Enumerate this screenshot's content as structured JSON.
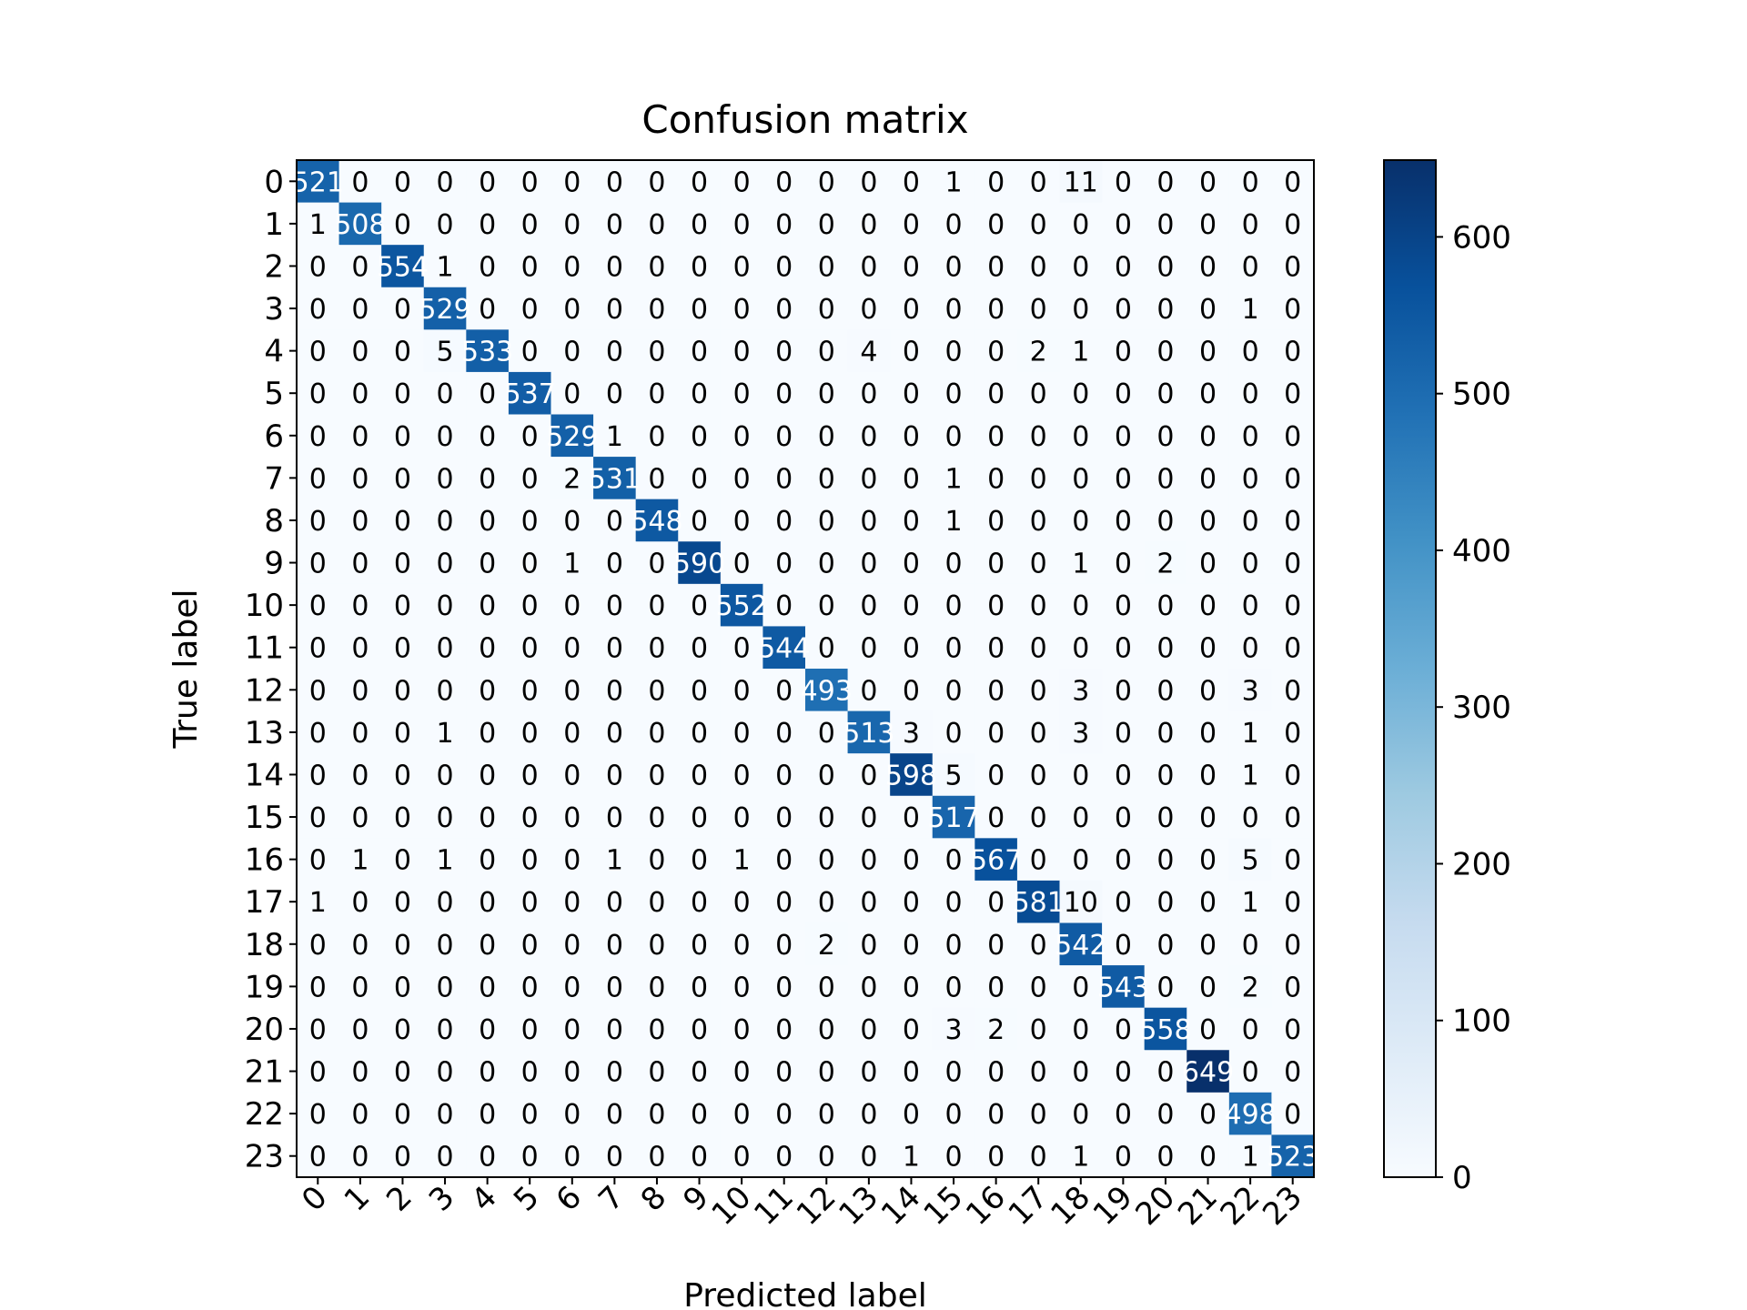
{
  "chart_data": {
    "type": "heatmap",
    "title": "Confusion matrix",
    "xlabel": "Predicted label",
    "ylabel": "True label",
    "labels": [
      "0",
      "1",
      "2",
      "3",
      "4",
      "5",
      "6",
      "7",
      "8",
      "9",
      "10",
      "11",
      "12",
      "13",
      "14",
      "15",
      "16",
      "17",
      "18",
      "19",
      "20",
      "21",
      "22",
      "23"
    ],
    "matrix": [
      [
        521,
        0,
        0,
        0,
        0,
        0,
        0,
        0,
        0,
        0,
        0,
        0,
        0,
        0,
        0,
        1,
        0,
        0,
        11,
        0,
        0,
        0,
        0,
        0
      ],
      [
        1,
        508,
        0,
        0,
        0,
        0,
        0,
        0,
        0,
        0,
        0,
        0,
        0,
        0,
        0,
        0,
        0,
        0,
        0,
        0,
        0,
        0,
        0,
        0
      ],
      [
        0,
        0,
        554,
        1,
        0,
        0,
        0,
        0,
        0,
        0,
        0,
        0,
        0,
        0,
        0,
        0,
        0,
        0,
        0,
        0,
        0,
        0,
        0,
        0
      ],
      [
        0,
        0,
        0,
        529,
        0,
        0,
        0,
        0,
        0,
        0,
        0,
        0,
        0,
        0,
        0,
        0,
        0,
        0,
        0,
        0,
        0,
        0,
        1,
        0
      ],
      [
        0,
        0,
        0,
        5,
        533,
        0,
        0,
        0,
        0,
        0,
        0,
        0,
        0,
        4,
        0,
        0,
        0,
        2,
        1,
        0,
        0,
        0,
        0,
        0
      ],
      [
        0,
        0,
        0,
        0,
        0,
        537,
        0,
        0,
        0,
        0,
        0,
        0,
        0,
        0,
        0,
        0,
        0,
        0,
        0,
        0,
        0,
        0,
        0,
        0
      ],
      [
        0,
        0,
        0,
        0,
        0,
        0,
        529,
        1,
        0,
        0,
        0,
        0,
        0,
        0,
        0,
        0,
        0,
        0,
        0,
        0,
        0,
        0,
        0,
        0
      ],
      [
        0,
        0,
        0,
        0,
        0,
        0,
        2,
        531,
        0,
        0,
        0,
        0,
        0,
        0,
        0,
        1,
        0,
        0,
        0,
        0,
        0,
        0,
        0,
        0
      ],
      [
        0,
        0,
        0,
        0,
        0,
        0,
        0,
        0,
        548,
        0,
        0,
        0,
        0,
        0,
        0,
        1,
        0,
        0,
        0,
        0,
        0,
        0,
        0,
        0
      ],
      [
        0,
        0,
        0,
        0,
        0,
        0,
        1,
        0,
        0,
        590,
        0,
        0,
        0,
        0,
        0,
        0,
        0,
        0,
        1,
        0,
        2,
        0,
        0,
        0
      ],
      [
        0,
        0,
        0,
        0,
        0,
        0,
        0,
        0,
        0,
        0,
        552,
        0,
        0,
        0,
        0,
        0,
        0,
        0,
        0,
        0,
        0,
        0,
        0,
        0
      ],
      [
        0,
        0,
        0,
        0,
        0,
        0,
        0,
        0,
        0,
        0,
        0,
        544,
        0,
        0,
        0,
        0,
        0,
        0,
        0,
        0,
        0,
        0,
        0,
        0
      ],
      [
        0,
        0,
        0,
        0,
        0,
        0,
        0,
        0,
        0,
        0,
        0,
        0,
        493,
        0,
        0,
        0,
        0,
        0,
        3,
        0,
        0,
        0,
        3,
        0
      ],
      [
        0,
        0,
        0,
        1,
        0,
        0,
        0,
        0,
        0,
        0,
        0,
        0,
        0,
        513,
        3,
        0,
        0,
        0,
        3,
        0,
        0,
        0,
        1,
        0
      ],
      [
        0,
        0,
        0,
        0,
        0,
        0,
        0,
        0,
        0,
        0,
        0,
        0,
        0,
        0,
        598,
        5,
        0,
        0,
        0,
        0,
        0,
        0,
        1,
        0
      ],
      [
        0,
        0,
        0,
        0,
        0,
        0,
        0,
        0,
        0,
        0,
        0,
        0,
        0,
        0,
        0,
        517,
        0,
        0,
        0,
        0,
        0,
        0,
        0,
        0
      ],
      [
        0,
        1,
        0,
        1,
        0,
        0,
        0,
        1,
        0,
        0,
        1,
        0,
        0,
        0,
        0,
        0,
        567,
        0,
        0,
        0,
        0,
        0,
        5,
        0
      ],
      [
        1,
        0,
        0,
        0,
        0,
        0,
        0,
        0,
        0,
        0,
        0,
        0,
        0,
        0,
        0,
        0,
        0,
        581,
        10,
        0,
        0,
        0,
        1,
        0
      ],
      [
        0,
        0,
        0,
        0,
        0,
        0,
        0,
        0,
        0,
        0,
        0,
        0,
        2,
        0,
        0,
        0,
        0,
        0,
        542,
        0,
        0,
        0,
        0,
        0
      ],
      [
        0,
        0,
        0,
        0,
        0,
        0,
        0,
        0,
        0,
        0,
        0,
        0,
        0,
        0,
        0,
        0,
        0,
        0,
        0,
        543,
        0,
        0,
        2,
        0
      ],
      [
        0,
        0,
        0,
        0,
        0,
        0,
        0,
        0,
        0,
        0,
        0,
        0,
        0,
        0,
        0,
        3,
        2,
        0,
        0,
        0,
        558,
        0,
        0,
        0
      ],
      [
        0,
        0,
        0,
        0,
        0,
        0,
        0,
        0,
        0,
        0,
        0,
        0,
        0,
        0,
        0,
        0,
        0,
        0,
        0,
        0,
        0,
        649,
        0,
        0
      ],
      [
        0,
        0,
        0,
        0,
        0,
        0,
        0,
        0,
        0,
        0,
        0,
        0,
        0,
        0,
        0,
        0,
        0,
        0,
        0,
        0,
        0,
        0,
        498,
        0
      ],
      [
        0,
        0,
        0,
        0,
        0,
        0,
        0,
        0,
        0,
        0,
        0,
        0,
        0,
        0,
        1,
        0,
        0,
        0,
        1,
        0,
        0,
        0,
        1,
        523
      ]
    ],
    "colormap": "Blues",
    "colorbar": {
      "min": 0,
      "max": 649,
      "ticks": [
        "0",
        "100",
        "200",
        "300",
        "400",
        "500",
        "600"
      ]
    }
  }
}
